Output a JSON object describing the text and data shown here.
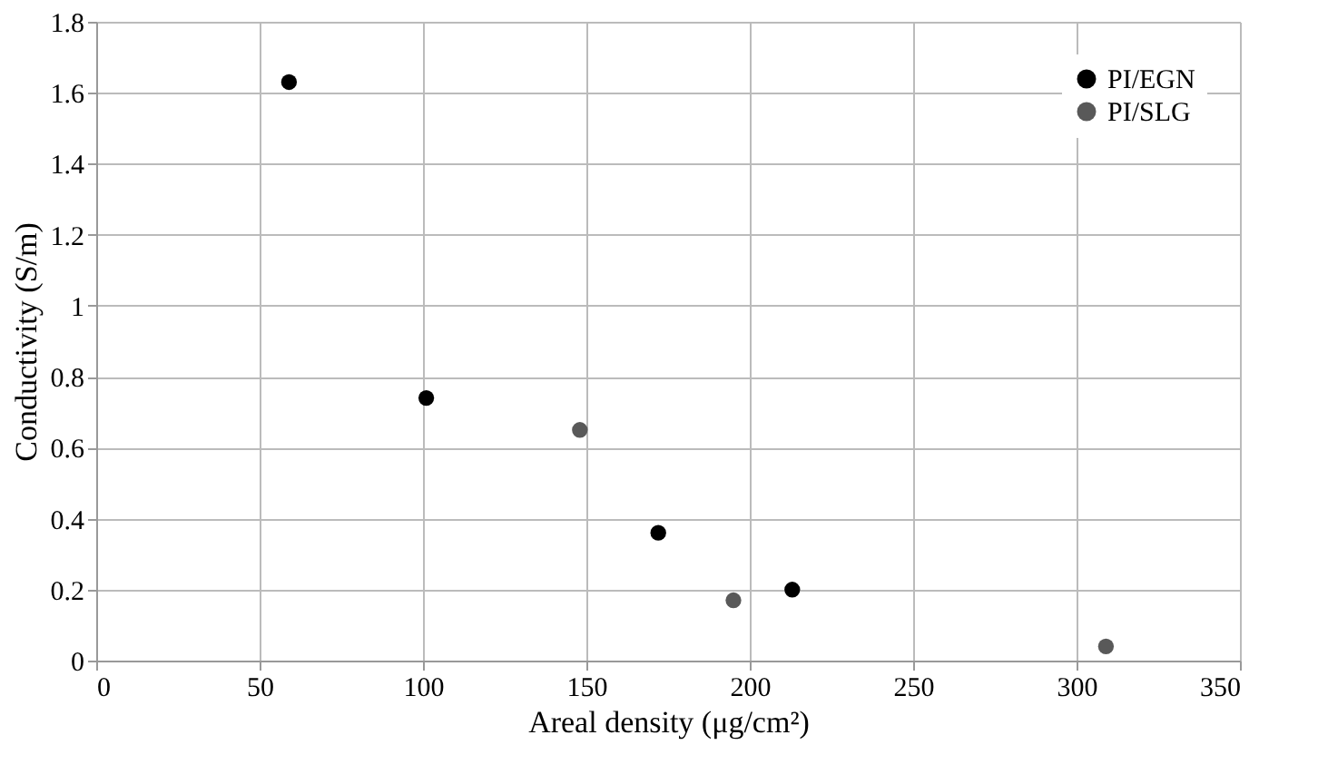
{
  "chart_data": {
    "type": "scatter",
    "xlabel": "Areal density (μg/cm²)",
    "ylabel": "Conductivity (S/m)",
    "series": [
      {
        "name": "PI/EGN",
        "color": "#000000",
        "x": [
          59,
          101,
          172,
          213
        ],
        "values": [
          1.63,
          0.74,
          0.36,
          0.2
        ]
      },
      {
        "name": "PI/SLG",
        "color": "#595959",
        "x": [
          148,
          195,
          309
        ],
        "values": [
          0.65,
          0.17,
          0.04
        ]
      }
    ],
    "xlim": [
      0,
      350
    ],
    "xticks": [
      0,
      50,
      100,
      150,
      200,
      250,
      300,
      350
    ],
    "ylim": [
      0,
      1.8
    ],
    "yticks": [
      0,
      0.2,
      0.4,
      0.6,
      0.8,
      1,
      1.2,
      1.4,
      1.6,
      1.8
    ],
    "grid": true,
    "legend": "top right",
    "marker": "circle"
  }
}
